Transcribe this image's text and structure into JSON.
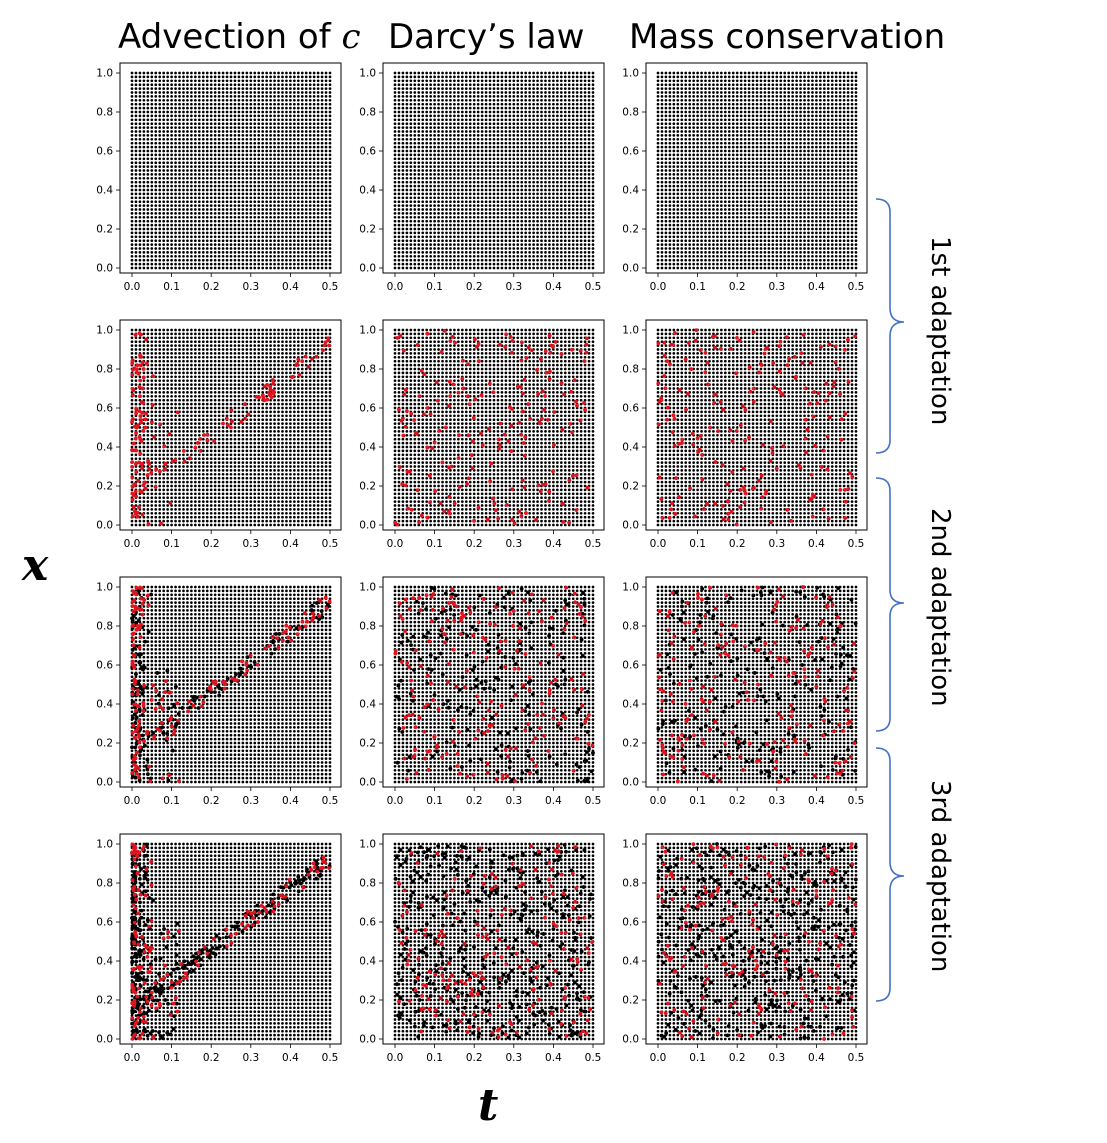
{
  "figure": {
    "column_titles": [
      {
        "text": "Advection of ",
        "var": "c"
      },
      {
        "text": "Darcy’s law",
        "var": ""
      },
      {
        "text": "Mass conservation",
        "var": ""
      }
    ],
    "x_axis_letter": "t",
    "y_axis_letter": "x",
    "bracket_labels": [
      "1st adaptation",
      "2nd adaptation",
      "3rd adaptation"
    ],
    "colors": {
      "initial_points": "#000000",
      "added_points": "#e0141e",
      "bracket": "#4472c4",
      "frame": "#000000"
    }
  },
  "chart_data": [
    {
      "type": "scatter",
      "grid_of_panels": "4 rows x 3 columns",
      "x_ticks": [
        "0.0",
        "0.1",
        "0.2",
        "0.3",
        "0.4",
        "0.5"
      ],
      "y_ticks": [
        "0.0",
        "0.2",
        "0.4",
        "0.6",
        "0.8",
        "1.0"
      ],
      "xlim": [
        0,
        0.5
      ],
      "ylim": [
        0,
        1.0
      ],
      "base_grid": {
        "nx": 51,
        "ny": 51,
        "t_range": [
          0,
          0.5
        ],
        "x_range": [
          0,
          1.0
        ]
      },
      "series_colors": {
        "base": "#000000",
        "new": "#e0141e",
        "previous": "#000000"
      },
      "panels": [
        {
          "row": 0,
          "col": 0,
          "pattern": "uniform",
          "density": 0
        },
        {
          "row": 0,
          "col": 1,
          "pattern": "uniform",
          "density": 0
        },
        {
          "row": 0,
          "col": 2,
          "pattern": "uniform",
          "density": 0
        },
        {
          "row": 1,
          "col": 0,
          "pattern": "advection",
          "density": 1
        },
        {
          "row": 1,
          "col": 1,
          "pattern": "random",
          "density": 1
        },
        {
          "row": 1,
          "col": 2,
          "pattern": "random",
          "density": 1
        },
        {
          "row": 2,
          "col": 0,
          "pattern": "advection",
          "density": 2
        },
        {
          "row": 2,
          "col": 1,
          "pattern": "random",
          "density": 2
        },
        {
          "row": 2,
          "col": 2,
          "pattern": "random",
          "density": 2
        },
        {
          "row": 3,
          "col": 0,
          "pattern": "advection",
          "density": 3
        },
        {
          "row": 3,
          "col": 1,
          "pattern": "random",
          "density": 3
        },
        {
          "row": 3,
          "col": 2,
          "pattern": "random",
          "density": 3
        }
      ]
    }
  ]
}
